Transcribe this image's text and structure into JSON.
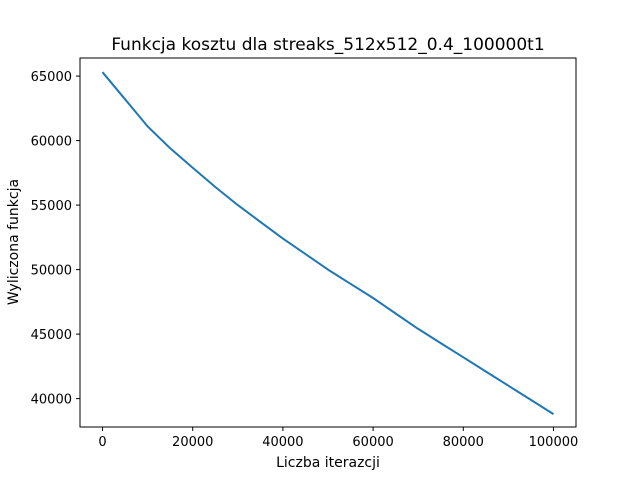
{
  "chart_data": {
    "type": "line",
    "title": "Funkcja kosztu dla streaks_512x512_0.4_100000t1",
    "xlabel": "Liczba iterazcji",
    "ylabel": "Wyliczona funkcja",
    "xlim": [
      -5000,
      105000
    ],
    "ylim": [
      37800,
      66400
    ],
    "xticks": [
      0,
      20000,
      40000,
      60000,
      80000,
      100000
    ],
    "xtick_labels": [
      "0",
      "20000",
      "40000",
      "60000",
      "80000",
      "100000"
    ],
    "yticks": [
      40000,
      45000,
      50000,
      55000,
      60000,
      65000
    ],
    "ytick_labels": [
      "40000",
      "45000",
      "50000",
      "55000",
      "60000",
      "65000"
    ],
    "grid": false,
    "legend": null,
    "series": [
      {
        "color": "#1f77b4",
        "x": [
          0,
          5000,
          10000,
          15000,
          20000,
          25000,
          30000,
          35000,
          40000,
          45000,
          50000,
          55000,
          60000,
          65000,
          70000,
          75000,
          80000,
          85000,
          90000,
          95000,
          100000
        ],
        "y": [
          65300,
          63200,
          61100,
          59400,
          57900,
          56400,
          55000,
          53700,
          52400,
          51200,
          50000,
          48900,
          47800,
          46600,
          45400,
          44300,
          43200,
          42100,
          41000,
          39900,
          38800
        ]
      }
    ]
  }
}
